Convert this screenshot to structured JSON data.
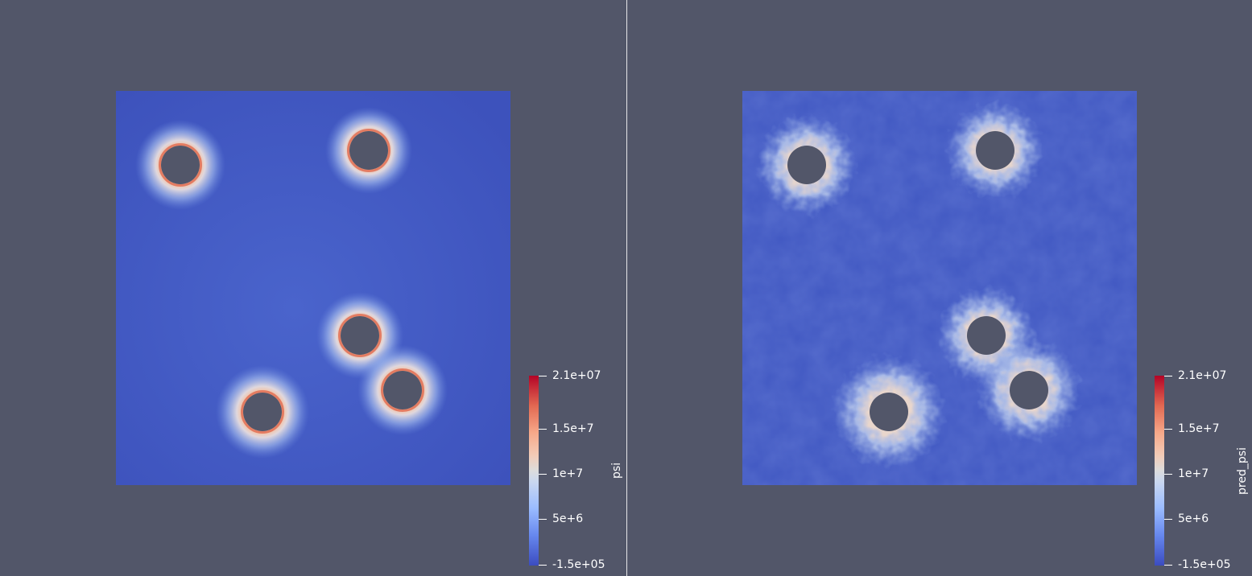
{
  "views": [
    {
      "id": "left",
      "field": "psi",
      "colorbar": {
        "title": "psi",
        "ticks": [
          "2.1e+07",
          "1.5e+7",
          "1e+7",
          "5e+6",
          "-1.5e+05"
        ],
        "range": [
          -150000,
          21000000
        ]
      },
      "colors": {
        "background": "#525669",
        "low": "#3b4cc0",
        "mid": "#dddddd",
        "high": "#b40426"
      }
    },
    {
      "id": "right",
      "field": "pred_psi",
      "colorbar": {
        "title": "pred_psi",
        "ticks": [
          "2.1e+07",
          "1.5e+7",
          "1e+7",
          "5e+6",
          "-1.5e+05"
        ],
        "range": [
          -150000,
          21000000
        ]
      },
      "colors": {
        "background": "#525669",
        "low": "#3b4cc0",
        "mid": "#dddddd",
        "high": "#b40426"
      }
    }
  ]
}
